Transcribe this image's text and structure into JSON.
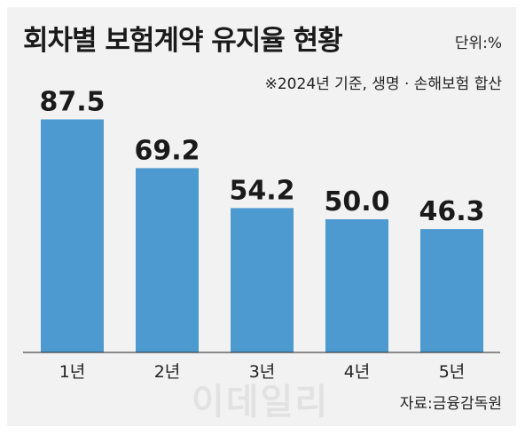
{
  "header": {
    "title": "회차별 보험계약 유지율 현황",
    "unit": "단위:%"
  },
  "note": "※2024년 기준, 생명 · 손해보험 합산",
  "source": "자료:금융감독원",
  "watermark": "이데일리",
  "colors": {
    "bar": "#4c9ad0",
    "background": "#f2f2f2",
    "axis": "#222222",
    "text": "#1a1a1a"
  },
  "chart_data": {
    "type": "bar",
    "title": "회차별 보험계약 유지율 현황",
    "categories": [
      "1년",
      "2년",
      "3년",
      "4년",
      "5년"
    ],
    "values": [
      87.5,
      69.2,
      54.2,
      50.0,
      46.3
    ],
    "value_labels": [
      "87.5",
      "69.2",
      "54.2",
      "50.0",
      "46.3"
    ],
    "ylim": [
      0,
      100
    ],
    "grid": false,
    "legend": "none",
    "xlabel": "",
    "ylabel": ""
  }
}
